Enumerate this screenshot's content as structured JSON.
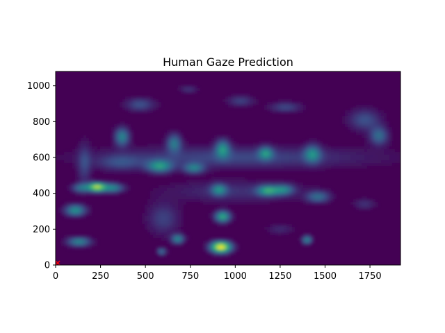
{
  "chart_data": {
    "type": "heatmap",
    "title": "Human Gaze Prediction",
    "xlabel": "",
    "ylabel": "",
    "xlim": [
      0,
      1920
    ],
    "ylim": [
      0,
      1080
    ],
    "xticks": [
      0,
      250,
      500,
      750,
      1000,
      1250,
      1500,
      1750
    ],
    "yticks": [
      0,
      200,
      400,
      600,
      800,
      1000
    ],
    "xtick_labels": [
      "0",
      "250",
      "500",
      "750",
      "1000",
      "1250",
      "1500",
      "1750"
    ],
    "ytick_labels": [
      "0",
      "200",
      "400",
      "600",
      "800",
      "1000"
    ],
    "colormap": "viridis",
    "background_color": "#440154",
    "hotspots": [
      {
        "x": 920,
        "y": 100,
        "intensity": 1.0,
        "sx": 40,
        "sy": 22
      },
      {
        "x": 230,
        "y": 435,
        "intensity": 0.85,
        "sx": 35,
        "sy": 18
      },
      {
        "x": 320,
        "y": 430,
        "intensity": 0.45,
        "sx": 40,
        "sy": 18
      },
      {
        "x": 140,
        "y": 430,
        "intensity": 0.35,
        "sx": 35,
        "sy": 18
      },
      {
        "x": 110,
        "y": 305,
        "intensity": 0.5,
        "sx": 40,
        "sy": 22
      },
      {
        "x": 130,
        "y": 130,
        "intensity": 0.45,
        "sx": 45,
        "sy": 18
      },
      {
        "x": 930,
        "y": 270,
        "intensity": 0.6,
        "sx": 30,
        "sy": 22
      },
      {
        "x": 910,
        "y": 420,
        "intensity": 0.4,
        "sx": 30,
        "sy": 22
      },
      {
        "x": 1180,
        "y": 415,
        "intensity": 0.5,
        "sx": 40,
        "sy": 20
      },
      {
        "x": 1270,
        "y": 420,
        "intensity": 0.4,
        "sx": 40,
        "sy": 20
      },
      {
        "x": 1460,
        "y": 380,
        "intensity": 0.35,
        "sx": 45,
        "sy": 22
      },
      {
        "x": 1400,
        "y": 140,
        "intensity": 0.45,
        "sx": 20,
        "sy": 16
      },
      {
        "x": 680,
        "y": 145,
        "intensity": 0.45,
        "sx": 25,
        "sy": 18
      },
      {
        "x": 590,
        "y": 75,
        "intensity": 0.35,
        "sx": 18,
        "sy": 14
      },
      {
        "x": 580,
        "y": 550,
        "intensity": 0.5,
        "sx": 50,
        "sy": 24
      },
      {
        "x": 770,
        "y": 540,
        "intensity": 0.4,
        "sx": 40,
        "sy": 20
      },
      {
        "x": 370,
        "y": 715,
        "intensity": 0.45,
        "sx": 28,
        "sy": 35
      },
      {
        "x": 660,
        "y": 680,
        "intensity": 0.4,
        "sx": 28,
        "sy": 35
      },
      {
        "x": 930,
        "y": 650,
        "intensity": 0.45,
        "sx": 28,
        "sy": 35
      },
      {
        "x": 1170,
        "y": 625,
        "intensity": 0.4,
        "sx": 28,
        "sy": 25
      },
      {
        "x": 1430,
        "y": 620,
        "intensity": 0.4,
        "sx": 32,
        "sy": 35
      },
      {
        "x": 1800,
        "y": 720,
        "intensity": 0.35,
        "sx": 35,
        "sy": 35
      },
      {
        "x": 1720,
        "y": 810,
        "intensity": 0.25,
        "sx": 60,
        "sy": 40
      },
      {
        "x": 470,
        "y": 895,
        "intensity": 0.25,
        "sx": 55,
        "sy": 25
      },
      {
        "x": 1030,
        "y": 915,
        "intensity": 0.2,
        "sx": 50,
        "sy": 20
      },
      {
        "x": 1280,
        "y": 880,
        "intensity": 0.22,
        "sx": 60,
        "sy": 20
      },
      {
        "x": 740,
        "y": 980,
        "intensity": 0.15,
        "sx": 35,
        "sy": 15
      },
      {
        "x": 1720,
        "y": 340,
        "intensity": 0.15,
        "sx": 40,
        "sy": 20
      },
      {
        "x": 1250,
        "y": 200,
        "intensity": 0.12,
        "sx": 50,
        "sy": 20
      },
      {
        "x": 160,
        "y": 560,
        "intensity": 0.2,
        "sx": 25,
        "sy": 80
      },
      {
        "x": 1000,
        "y": 600,
        "intensity": 0.22,
        "sx": 500,
        "sy": 40
      },
      {
        "x": 600,
        "y": 260,
        "intensity": 0.2,
        "sx": 60,
        "sy": 60
      },
      {
        "x": 360,
        "y": 570,
        "intensity": 0.2,
        "sx": 90,
        "sy": 30
      },
      {
        "x": 1000,
        "y": 410,
        "intensity": 0.15,
        "sx": 250,
        "sy": 40
      }
    ],
    "marker": {
      "x": 0,
      "y": 0,
      "color": "#ff0000"
    }
  }
}
